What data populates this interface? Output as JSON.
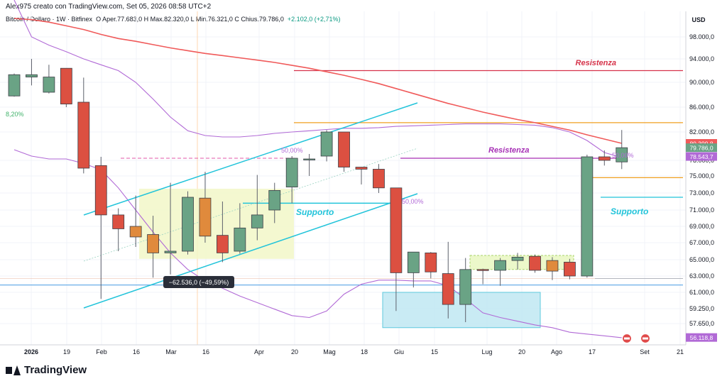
{
  "header": {
    "author_line": "Alex975 creato con TradingView.com, Set 05, 2026 08:58 UTC+2",
    "symbol": "Bitcoin / Dollaro · 1W · Bitfinex",
    "ohlc": "O  Aper.77.683,0  H  Max.82.320,0  L  Min.76.321,0  C  Chius.79.786,0",
    "change": "+2.102,0 (+2,71%)",
    "left_pct_label": "8,20%"
  },
  "footer": {
    "logo": "TradingView"
  },
  "colors": {
    "up": "#6aa385",
    "down": "#dc5041",
    "mid": "#e08a3c",
    "ema": "#f05a5a",
    "purple": "#b16ad6",
    "cyan": "#22c4da",
    "orange": "#f0a020",
    "resist_red": "#d6334a",
    "resist_purple": "#a62fb5",
    "hblue": "#6aaee8"
  },
  "chart_data": {
    "type": "candlestick",
    "title": "Bitcoin / Dollaro · 1W · Bitfinex",
    "currency": "USD",
    "ylim": [
      55000,
      101000
    ],
    "price_scale": {
      "currency_label": "USD",
      "ticks": [
        "98.000,0",
        "94.000,0",
        "90.000,0",
        "86.000,0",
        "82.000,0",
        "78.000,0",
        "75.000,0",
        "73.000,0",
        "71.000,0",
        "69.000,0",
        "67.000,0",
        "65.000,0",
        "63.000,0",
        "61.000,0",
        "59.250,0",
        "57.650,0"
      ],
      "tick_values": [
        98000,
        94000,
        90000,
        86000,
        82000,
        78000,
        75000,
        73000,
        71000,
        69000,
        67000,
        65000,
        63000,
        61000,
        59250,
        57650
      ]
    },
    "time_axis": [
      "2026",
      "19",
      "Feb",
      "16",
      "Mar",
      "16",
      "Apr",
      "20",
      "Mag",
      "18",
      "Giu",
      "15",
      "Lug",
      "20",
      "Ago",
      "17",
      "Set",
      "21"
    ],
    "candles": [
      {
        "o": 87800,
        "h": 91500,
        "l": 87700,
        "c": 91300
      },
      {
        "o": 90900,
        "h": 94000,
        "l": 89500,
        "c": 91300
      },
      {
        "o": 88400,
        "h": 93000,
        "l": 88200,
        "c": 90900
      },
      {
        "o": 92400,
        "h": 92400,
        "l": 86000,
        "c": 86500
      },
      {
        "o": 86800,
        "h": 90800,
        "l": 75500,
        "c": 76500
      },
      {
        "o": 77000,
        "h": 78500,
        "l": 60300,
        "c": 70400
      },
      {
        "o": 70400,
        "h": 71200,
        "l": 66000,
        "c": 68700
      },
      {
        "o": 69000,
        "h": 72700,
        "l": 66500,
        "c": 67700
      },
      {
        "o": 68000,
        "h": 70300,
        "l": 62800,
        "c": 65800
      },
      {
        "o": 65800,
        "h": 74200,
        "l": 63200,
        "c": 66000
      },
      {
        "o": 66000,
        "h": 73200,
        "l": 65600,
        "c": 72500
      },
      {
        "o": 72400,
        "h": 75800,
        "l": 67000,
        "c": 67800
      },
      {
        "o": 67900,
        "h": 72000,
        "l": 64700,
        "c": 65800
      },
      {
        "o": 66000,
        "h": 71800,
        "l": 65700,
        "c": 68800
      },
      {
        "o": 68800,
        "h": 75200,
        "l": 67300,
        "c": 70400
      },
      {
        "o": 71000,
        "h": 74200,
        "l": 69400,
        "c": 73300
      },
      {
        "o": 73700,
        "h": 78600,
        "l": 71800,
        "c": 78300
      },
      {
        "o": 78100,
        "h": 78900,
        "l": 75000,
        "c": 78200
      },
      {
        "o": 78600,
        "h": 82300,
        "l": 77800,
        "c": 82000
      },
      {
        "o": 82000,
        "h": 82000,
        "l": 75800,
        "c": 76700
      },
      {
        "o": 76700,
        "h": 76700,
        "l": 74000,
        "c": 76300
      },
      {
        "o": 76300,
        "h": 77300,
        "l": 73000,
        "c": 73600
      },
      {
        "o": 73600,
        "h": 73600,
        "l": 59000,
        "c": 63400
      },
      {
        "o": 63400,
        "h": 65900,
        "l": 61600,
        "c": 65900
      },
      {
        "o": 65800,
        "h": 65900,
        "l": 62700,
        "c": 63500
      },
      {
        "o": 63300,
        "h": 67100,
        "l": 58200,
        "c": 59700
      },
      {
        "o": 59700,
        "h": 65200,
        "l": 57800,
        "c": 63800
      },
      {
        "o": 63800,
        "h": 63900,
        "l": 62000,
        "c": 63700
      },
      {
        "o": 63700,
        "h": 65200,
        "l": 61800,
        "c": 64900
      },
      {
        "o": 64900,
        "h": 65800,
        "l": 63800,
        "c": 65300
      },
      {
        "o": 65400,
        "h": 65600,
        "l": 63400,
        "c": 63700
      },
      {
        "o": 63600,
        "h": 65300,
        "l": 62500,
        "c": 64900
      },
      {
        "o": 64700,
        "h": 65100,
        "l": 62600,
        "c": 63000
      },
      {
        "o": 63000,
        "h": 78800,
        "l": 62800,
        "c": 78500
      },
      {
        "o": 78500,
        "h": 79400,
        "l": 77000,
        "c": 78000
      },
      {
        "o": 77700,
        "h": 82320,
        "l": 76321,
        "c": 79786
      }
    ],
    "series": [
      {
        "name": "",
        "values": [
          99500,
          99400,
          99200,
          98900,
          98600,
          98200,
          97700,
          97200,
          96600,
          96000,
          95500,
          95000,
          94600,
          94200,
          93800,
          93400,
          92900,
          92400,
          91800,
          91200,
          90500,
          89800,
          89000,
          88200,
          87400,
          86600,
          85900,
          85200,
          84600,
          84000,
          83500,
          82900,
          82300,
          81600,
          81000,
          80400
        ]
      },
      {
        "name": "",
        "values": [
          79500,
          78600,
          78200,
          78200,
          77400,
          76200,
          73600,
          71000,
          68300,
          65800,
          63800,
          62400,
          61500,
          60600,
          59900,
          59200,
          58500,
          58300,
          59000,
          60800,
          62000,
          62500,
          62500,
          62400,
          62400,
          61800,
          60300,
          58800,
          58300,
          57900,
          57500,
          57200,
          56700,
          56500,
          56300,
          56100
        ]
      },
      {
        "name": "",
        "values": [
          101000,
          98000,
          96500,
          95300,
          94000,
          93000,
          92000,
          90000,
          87300,
          84400,
          82200,
          81500,
          81300,
          81300,
          81500,
          81800,
          82000,
          82200,
          82400,
          82600,
          82600,
          82700,
          82900,
          83000,
          83100,
          83200,
          83300,
          83300,
          83300,
          83200,
          83100,
          82700,
          82000,
          80800,
          79100,
          78400
        ]
      }
    ],
    "levels": {
      "resistenza_red": 92000,
      "orange": 83500,
      "resistenza_purple": 78300,
      "dashed_pink": 78300,
      "supporto_cyan": 71800,
      "supporto_cyan_right": 72500,
      "orange_right": 74800,
      "blue_low": 61900,
      "grey_low": 62700
    },
    "annotations": {
      "resistenza_top": "Resistenza",
      "resistenza_mid": "Resistenza",
      "supporto_left": "Supporto",
      "supporto_right": "Supporto",
      "fib_a": "50,00%",
      "fib_b": "50,00%",
      "fib_c": "50,00%",
      "measure": "−62.536,0 (−49,59%)"
    },
    "price_tags": [
      {
        "label": "80.399,8",
        "value": 80400,
        "color": "#f05a5a"
      },
      {
        "label": "79.786,0",
        "value": 79786,
        "color": "#6aa385"
      },
      {
        "label": "78.543,7",
        "value": 78543,
        "color": "#b16ad6"
      },
      {
        "label": "56.118,8",
        "value": 56119,
        "color": "#b16ad6"
      }
    ]
  }
}
